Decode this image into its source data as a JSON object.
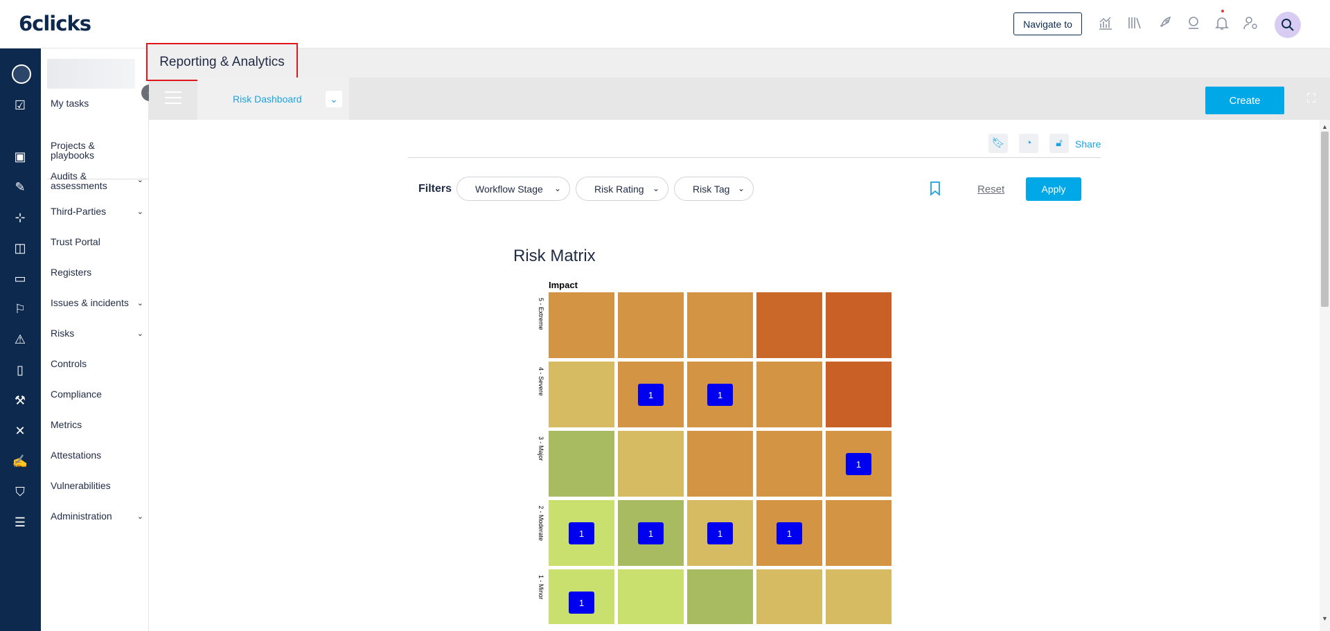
{
  "app": {
    "logo": "6clicks"
  },
  "topbar": {
    "navigate_label": "Navigate to",
    "icons": [
      "chart-icon",
      "library-icon",
      "rocket-icon",
      "support-icon",
      "bell-icon",
      "user-settings-icon",
      "search-avatar-icon"
    ]
  },
  "sidebar": {
    "my_tasks": "My tasks",
    "items": [
      {
        "label": "Projects & playbooks",
        "chevron": false
      },
      {
        "label": "Audits & assessments",
        "chevron": true
      },
      {
        "label": "Third-Parties",
        "chevron": true
      },
      {
        "label": "Trust Portal",
        "chevron": false
      },
      {
        "label": "Registers",
        "chevron": false
      },
      {
        "label": "Issues & incidents",
        "chevron": true
      },
      {
        "label": "Risks",
        "chevron": true
      },
      {
        "label": "Controls",
        "chevron": false
      },
      {
        "label": "Compliance",
        "chevron": false
      },
      {
        "label": "Metrics",
        "chevron": false
      },
      {
        "label": "Attestations",
        "chevron": false
      },
      {
        "label": "Vulnerabilities",
        "chevron": false
      },
      {
        "label": "Administration",
        "chevron": true
      }
    ]
  },
  "page": {
    "title": "Reporting & Analytics",
    "dashboard": "Risk Dashboard",
    "create_label": "Create",
    "share_label": "Share"
  },
  "filters": {
    "label": "Filters",
    "pills": [
      "Workflow Stage",
      "Risk Rating",
      "Risk Tag"
    ],
    "reset_label": "Reset",
    "apply_label": "Apply"
  },
  "matrix": {
    "title": "Risk Matrix",
    "axis_label": "Impact",
    "rows": [
      {
        "label": "5 - Extreme",
        "colors": [
          "#d39443",
          "#d39443",
          "#d39443",
          "#c96828",
          "#c96126"
        ],
        "counts": [
          null,
          null,
          null,
          null,
          null
        ]
      },
      {
        "label": "4 - Severe",
        "colors": [
          "#d6bb62",
          "#d39443",
          "#d39443",
          "#d39443",
          "#c96126"
        ],
        "counts": [
          null,
          "1",
          "1",
          null,
          null
        ]
      },
      {
        "label": "3 - Major",
        "colors": [
          "#a8bb60",
          "#d6bb62",
          "#d39443",
          "#d39443",
          "#d39443"
        ],
        "counts": [
          null,
          null,
          null,
          null,
          "1"
        ]
      },
      {
        "label": "2 - Moderate",
        "colors": [
          "#c9e06f",
          "#a8bb60",
          "#d6bb62",
          "#d39443",
          "#d39443"
        ],
        "counts": [
          "1",
          "1",
          "1",
          "1",
          null
        ]
      },
      {
        "label": "1 - Minor",
        "colors": [
          "#c9e06f",
          "#c9e06f",
          "#a8bb60",
          "#d6bb62",
          "#d6bb62"
        ],
        "counts": [
          "1",
          null,
          null,
          null,
          null
        ]
      }
    ]
  }
}
